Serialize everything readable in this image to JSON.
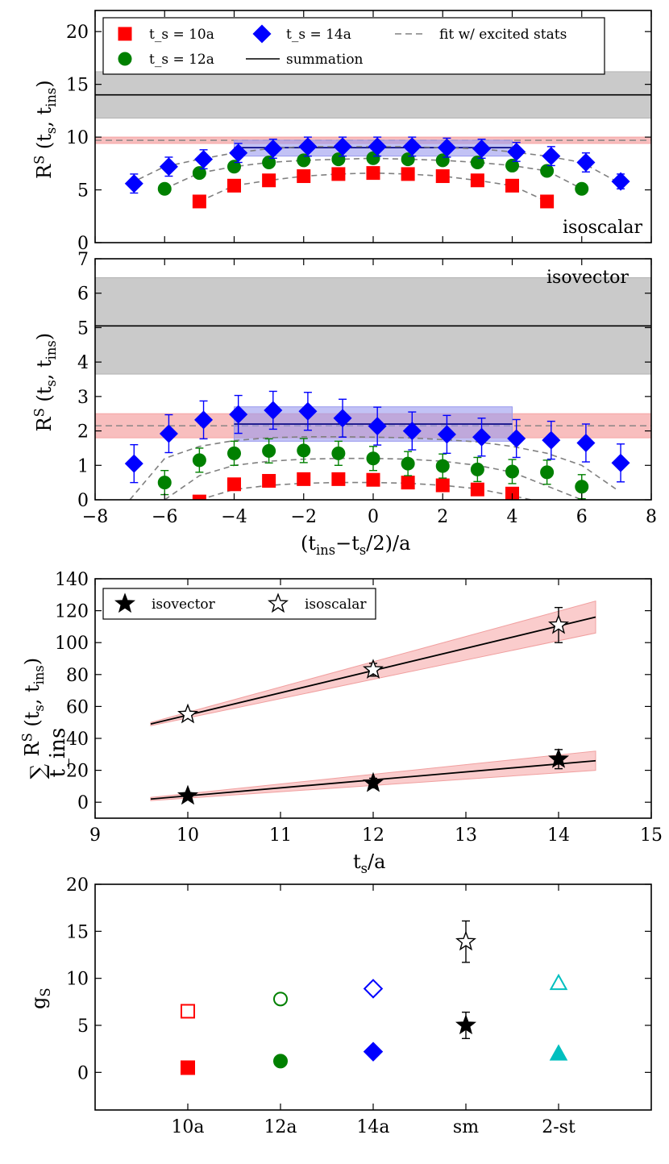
{
  "chart_data": [
    {
      "id": "isoscalar",
      "type": "scatter",
      "ylabel": "R^S (t_s, t_ins)",
      "ylim": [
        0,
        22
      ],
      "xlim": [
        -8,
        8
      ],
      "yticks": [
        0,
        5,
        10,
        15,
        20
      ],
      "annotation": "isoscalar",
      "legend": {
        "entries": [
          {
            "label": "t_s = 10a",
            "marker": "square",
            "color": "#ff0000"
          },
          {
            "label": "t_s = 12a",
            "marker": "circle",
            "color": "#008000"
          },
          {
            "label": "t_s = 14a",
            "marker": "diamond",
            "color": "#0000ff"
          },
          {
            "label": "summation",
            "marker": "line",
            "color": "#000000"
          },
          {
            "label": "fit w/ excited stats",
            "marker": "dash",
            "color": "#808080"
          }
        ]
      },
      "bands": [
        {
          "name": "summation",
          "center": 14.0,
          "low": 11.8,
          "high": 16.2,
          "color": "#b3b3b3",
          "line": "#000000"
        },
        {
          "name": "fit w/ excited stats",
          "center": 9.7,
          "low": 9.4,
          "high": 10.0,
          "color": "#f5a3a3",
          "line": "#808080",
          "dashed": true
        },
        {
          "name": "plateau",
          "center": 9.0,
          "low": 8.2,
          "high": 9.7,
          "xrange": [
            -4,
            4
          ],
          "color": "#9999ee",
          "line": "#000080"
        }
      ],
      "series": [
        {
          "name": "t_s = 10a",
          "marker": "square",
          "color": "#ff0000",
          "x": [
            -5,
            -4,
            -3,
            -2,
            -1,
            0,
            1,
            2,
            3,
            4,
            5
          ],
          "y": [
            3.9,
            5.4,
            5.9,
            6.3,
            6.5,
            6.6,
            6.5,
            6.3,
            5.9,
            5.4,
            3.9
          ],
          "err": [
            0.3,
            0.3,
            0.3,
            0.3,
            0.3,
            0.3,
            0.3,
            0.3,
            0.3,
            0.3,
            0.3
          ]
        },
        {
          "name": "t_s = 12a",
          "marker": "circle",
          "color": "#008000",
          "x": [
            -6,
            -5,
            -4,
            -3,
            -2,
            -1,
            0,
            1,
            2,
            3,
            4,
            5,
            6
          ],
          "y": [
            5.1,
            6.6,
            7.2,
            7.6,
            7.8,
            7.9,
            8.0,
            7.9,
            7.8,
            7.6,
            7.3,
            6.8,
            5.1
          ],
          "err": [
            0.4,
            0.4,
            0.4,
            0.4,
            0.4,
            0.4,
            0.4,
            0.4,
            0.4,
            0.4,
            0.4,
            0.4,
            0.4
          ]
        },
        {
          "name": "t_s = 14a",
          "marker": "diamond",
          "color": "#0000ff",
          "x": [
            -7,
            -6,
            -5,
            -4,
            -3,
            -2,
            -1,
            0,
            1,
            2,
            3,
            4,
            5,
            6,
            7
          ],
          "y": [
            5.6,
            7.2,
            7.9,
            8.5,
            8.9,
            9.1,
            9.1,
            9.1,
            9.1,
            9.0,
            8.9,
            8.6,
            8.2,
            7.6,
            5.8
          ],
          "err": [
            0.9,
            0.9,
            0.9,
            0.9,
            0.9,
            0.9,
            0.9,
            0.9,
            0.9,
            0.9,
            0.9,
            0.9,
            0.9,
            0.9,
            0.7
          ]
        }
      ],
      "fit_curves": [
        {
          "for": "t_s = 10a",
          "x": [
            -5,
            -4,
            -3,
            -2,
            -1,
            0,
            1,
            2,
            3,
            4,
            5
          ],
          "y": [
            3.9,
            5.4,
            5.9,
            6.3,
            6.5,
            6.6,
            6.5,
            6.3,
            5.9,
            5.4,
            3.9
          ]
        },
        {
          "for": "t_s = 12a",
          "x": [
            -6,
            -5,
            -4,
            -3,
            -2,
            -1,
            0,
            1,
            2,
            3,
            4,
            5,
            6
          ],
          "y": [
            5.1,
            6.6,
            7.2,
            7.6,
            7.8,
            7.9,
            8.0,
            7.9,
            7.8,
            7.6,
            7.3,
            6.8,
            5.1
          ]
        },
        {
          "for": "t_s = 14a",
          "x": [
            -7,
            -6,
            -5,
            -4,
            -3,
            -2,
            -1,
            0,
            1,
            2,
            3,
            4,
            5,
            6,
            7
          ],
          "y": [
            5.6,
            7.2,
            7.9,
            8.5,
            8.9,
            9.1,
            9.1,
            9.1,
            9.1,
            9.0,
            8.9,
            8.6,
            8.2,
            7.6,
            5.8
          ]
        }
      ]
    },
    {
      "id": "isovector",
      "type": "scatter",
      "ylabel": "R^S (t_s, t_ins)",
      "xlabel": "(t_ins − t_s/2)/a",
      "ylim": [
        0,
        7
      ],
      "xlim": [
        -8,
        8
      ],
      "yticks": [
        0,
        1,
        2,
        3,
        4,
        5,
        6,
        7
      ],
      "xticks": [
        -8,
        -6,
        -4,
        -2,
        0,
        2,
        4,
        6,
        8
      ],
      "annotation": "isovector",
      "bands": [
        {
          "name": "summation",
          "center": 5.05,
          "low": 3.65,
          "high": 6.45,
          "color": "#b3b3b3",
          "line": "#000000"
        },
        {
          "name": "fit w/ excited stats",
          "center": 2.15,
          "low": 1.8,
          "high": 2.5,
          "color": "#f5a3a3",
          "line": "#808080",
          "dashed": true
        },
        {
          "name": "plateau",
          "center": 2.2,
          "low": 1.7,
          "high": 2.7,
          "xrange": [
            -4,
            4
          ],
          "color": "#9999ee",
          "line": "#000080"
        }
      ],
      "series": [
        {
          "name": "t_s = 10a",
          "marker": "square",
          "color": "#ff0000",
          "x": [
            -5,
            -4,
            -3,
            -2,
            -1,
            0,
            1,
            2,
            3,
            4
          ],
          "y": [
            -0.05,
            0.45,
            0.55,
            0.6,
            0.6,
            0.58,
            0.5,
            0.42,
            0.3,
            0.18
          ],
          "err": [
            0.1,
            0.1,
            0.1,
            0.1,
            0.1,
            0.1,
            0.1,
            0.1,
            0.1,
            0.1
          ]
        },
        {
          "name": "t_s = 12a",
          "marker": "circle",
          "color": "#008000",
          "x": [
            -6,
            -5,
            -4,
            -3,
            -2,
            -1,
            0,
            1,
            2,
            3,
            4,
            5,
            6
          ],
          "y": [
            0.5,
            1.15,
            1.35,
            1.42,
            1.43,
            1.35,
            1.2,
            1.05,
            0.98,
            0.88,
            0.82,
            0.8,
            0.38
          ],
          "err": [
            0.35,
            0.35,
            0.35,
            0.35,
            0.35,
            0.35,
            0.35,
            0.35,
            0.35,
            0.35,
            0.35,
            0.35,
            0.35
          ]
        },
        {
          "name": "t_s = 14a",
          "marker": "diamond",
          "color": "#0000ff",
          "x": [
            -7,
            -6,
            -5,
            -4,
            -3,
            -2,
            -1,
            0,
            1,
            2,
            3,
            4,
            5,
            6,
            7
          ],
          "y": [
            1.05,
            1.92,
            2.32,
            2.48,
            2.6,
            2.57,
            2.37,
            2.14,
            2.0,
            1.9,
            1.82,
            1.78,
            1.73,
            1.65,
            1.07
          ],
          "err": [
            0.55,
            0.55,
            0.55,
            0.55,
            0.55,
            0.55,
            0.55,
            0.55,
            0.55,
            0.55,
            0.55,
            0.55,
            0.55,
            0.55,
            0.55
          ]
        }
      ],
      "fit_curves": [
        {
          "for": "t_s = 10a",
          "x": [
            -5,
            -4,
            -3,
            -2,
            -1,
            0,
            1,
            2,
            3,
            4,
            5
          ],
          "y": [
            0.0,
            0.3,
            0.42,
            0.48,
            0.5,
            0.5,
            0.48,
            0.42,
            0.32,
            0.12,
            -0.1
          ]
        },
        {
          "for": "t_s = 12a",
          "x": [
            -6,
            -5,
            -4,
            -3,
            -2,
            -1,
            0,
            1,
            2,
            3,
            4,
            5,
            6
          ],
          "y": [
            0.0,
            0.7,
            1.0,
            1.12,
            1.18,
            1.2,
            1.2,
            1.18,
            1.12,
            1.0,
            0.8,
            0.4,
            0.0
          ]
        },
        {
          "for": "t_s = 14a",
          "x": [
            -7,
            -6,
            -5,
            -4,
            -3,
            -2,
            -1,
            0,
            1,
            2,
            3,
            4,
            5,
            6,
            7
          ],
          "y": [
            0.0,
            1.2,
            1.55,
            1.72,
            1.8,
            1.83,
            1.83,
            1.82,
            1.8,
            1.75,
            1.68,
            1.55,
            1.35,
            1.0,
            0.3
          ]
        }
      ]
    },
    {
      "id": "summation",
      "type": "scatter",
      "ylabel": "∑ R^S (t_s, t_ins)",
      "ylabel_sub": "t_ins",
      "xlabel": "t_s/a",
      "xlim": [
        9,
        15
      ],
      "ylim": [
        -10,
        140
      ],
      "xticks": [
        9,
        10,
        11,
        12,
        13,
        14,
        15
      ],
      "yticks": [
        0,
        20,
        40,
        60,
        80,
        100,
        120,
        140
      ],
      "legend": {
        "entries": [
          {
            "label": "isovector",
            "marker": "star-filled"
          },
          {
            "label": "isoscalar",
            "marker": "star-open"
          }
        ]
      },
      "series": [
        {
          "name": "isovector",
          "marker": "star-filled",
          "x": [
            10,
            12,
            14
          ],
          "y": [
            4,
            12,
            27
          ],
          "err": [
            2,
            3,
            6
          ]
        },
        {
          "name": "isoscalar",
          "marker": "star-open",
          "x": [
            10,
            12,
            14
          ],
          "y": [
            55,
            83,
            111
          ],
          "err": [
            2,
            4,
            11
          ]
        }
      ],
      "fit_lines": [
        {
          "for": "isovector",
          "x": [
            9.6,
            14.4
          ],
          "y": [
            2,
            26
          ],
          "band_low": [
            1,
            20
          ],
          "band_high": [
            3,
            32
          ]
        },
        {
          "for": "isoscalar",
          "x": [
            9.6,
            14.4
          ],
          "y": [
            49,
            116
          ],
          "band_low": [
            48,
            106
          ],
          "band_high": [
            50,
            126
          ]
        }
      ]
    },
    {
      "id": "comparison",
      "type": "scatter",
      "ylabel": "g_S",
      "categories": [
        "10a",
        "12a",
        "14a",
        "sm",
        "2-st"
      ],
      "ylim": [
        -4,
        20
      ],
      "yticks": [
        0,
        5,
        10,
        15,
        20
      ],
      "series": [
        {
          "name": "isoscalar",
          "filled": false,
          "markers": [
            "square",
            "circle",
            "diamond",
            "star",
            "triangle"
          ],
          "colors": [
            "#ff0000",
            "#008000",
            "#0000ff",
            "#000000",
            "#00bfbf"
          ],
          "y": [
            6.5,
            7.8,
            8.9,
            13.9,
            9.5
          ],
          "err": [
            0.2,
            0.3,
            0.6,
            2.2,
            0.3
          ]
        },
        {
          "name": "isovector",
          "filled": true,
          "markers": [
            "square",
            "circle",
            "diamond",
            "star",
            "triangle"
          ],
          "colors": [
            "#ff0000",
            "#008000",
            "#0000ff",
            "#000000",
            "#00bfbf"
          ],
          "y": [
            0.5,
            1.2,
            2.2,
            5.0,
            2.0
          ],
          "err": [
            0.1,
            0.2,
            0.3,
            1.4,
            0.3
          ]
        }
      ]
    }
  ]
}
